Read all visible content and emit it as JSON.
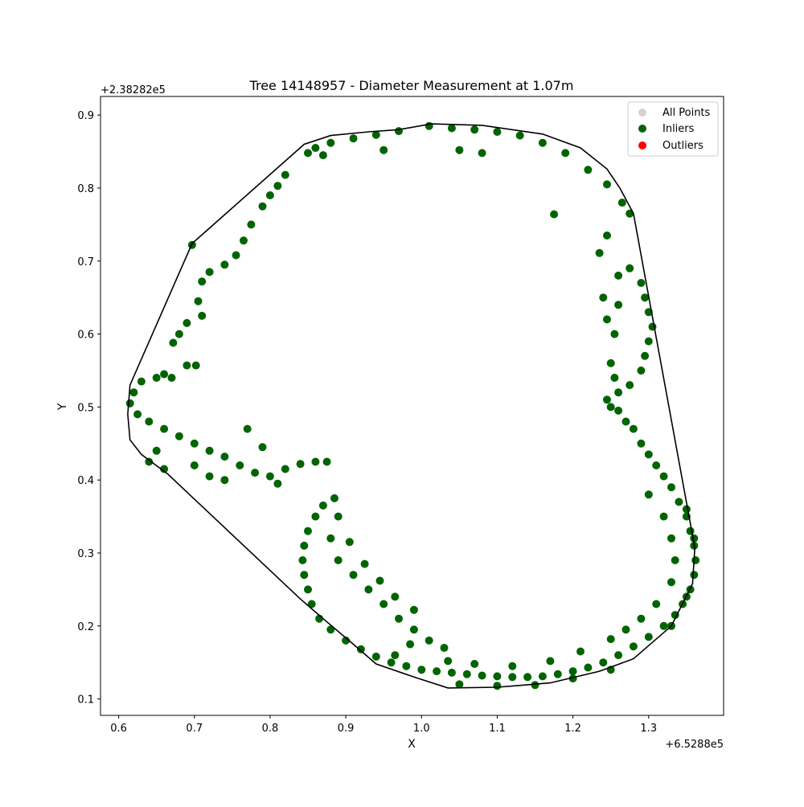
{
  "chart_data": {
    "type": "scatter",
    "title": "Tree 14148957 - Diameter Measurement at 1.07m",
    "xlabel": "X",
    "ylabel": "Y",
    "x_offset_label": "+6.5288e5",
    "y_offset_label": "+2.38282e5",
    "xlim": [
      0.576,
      1.399
    ],
    "ylim": [
      0.0775,
      0.9255
    ],
    "xticks": [
      0.6,
      0.7,
      0.8,
      0.9,
      1.0,
      1.1,
      1.2,
      1.3
    ],
    "xtick_labels": [
      "0.6",
      "0.7",
      "0.8",
      "0.9",
      "1.0",
      "1.1",
      "1.2",
      "1.3"
    ],
    "yticks": [
      0.1,
      0.2,
      0.3,
      0.4,
      0.5,
      0.6,
      0.7,
      0.8,
      0.9
    ],
    "ytick_labels": [
      "0.1",
      "0.2",
      "0.3",
      "0.4",
      "0.5",
      "0.6",
      "0.7",
      "0.8",
      "0.9"
    ],
    "grid": false,
    "legend_position": "top-right",
    "legend": [
      {
        "label": "All Points",
        "color": "#d3d3d3"
      },
      {
        "label": "Inliers",
        "color": "#006400"
      },
      {
        "label": "Outliers",
        "color": "#ff0000"
      }
    ],
    "series": [
      {
        "name": "Inliers",
        "color": "#006400",
        "points": [
          [
            1.01,
            0.885
          ],
          [
            1.04,
            0.882
          ],
          [
            1.07,
            0.88
          ],
          [
            1.1,
            0.877
          ],
          [
            1.13,
            0.872
          ],
          [
            1.16,
            0.862
          ],
          [
            1.19,
            0.848
          ],
          [
            1.22,
            0.825
          ],
          [
            1.245,
            0.805
          ],
          [
            1.265,
            0.78
          ],
          [
            1.275,
            0.765
          ],
          [
            0.97,
            0.878
          ],
          [
            0.94,
            0.873
          ],
          [
            0.91,
            0.868
          ],
          [
            0.88,
            0.862
          ],
          [
            0.86,
            0.855
          ],
          [
            0.85,
            0.848
          ],
          [
            0.87,
            0.845
          ],
          [
            0.95,
            0.852
          ],
          [
            1.05,
            0.852
          ],
          [
            1.08,
            0.848
          ],
          [
            1.175,
            0.764
          ],
          [
            1.245,
            0.735
          ],
          [
            1.235,
            0.711
          ],
          [
            0.82,
            0.818
          ],
          [
            0.81,
            0.803
          ],
          [
            0.8,
            0.79
          ],
          [
            0.79,
            0.775
          ],
          [
            0.775,
            0.75
          ],
          [
            0.765,
            0.728
          ],
          [
            0.755,
            0.708
          ],
          [
            0.74,
            0.695
          ],
          [
            0.72,
            0.685
          ],
          [
            0.71,
            0.672
          ],
          [
            0.697,
            0.722
          ],
          [
            0.705,
            0.645
          ],
          [
            0.71,
            0.625
          ],
          [
            0.69,
            0.615
          ],
          [
            0.68,
            0.6
          ],
          [
            0.672,
            0.588
          ],
          [
            0.69,
            0.557
          ],
          [
            0.702,
            0.557
          ],
          [
            0.63,
            0.535
          ],
          [
            0.65,
            0.54
          ],
          [
            0.66,
            0.545
          ],
          [
            0.67,
            0.54
          ],
          [
            0.62,
            0.52
          ],
          [
            0.615,
            0.505
          ],
          [
            0.625,
            0.49
          ],
          [
            0.64,
            0.48
          ],
          [
            0.66,
            0.47
          ],
          [
            0.68,
            0.46
          ],
          [
            0.7,
            0.45
          ],
          [
            0.72,
            0.44
          ],
          [
            0.74,
            0.432
          ],
          [
            0.76,
            0.42
          ],
          [
            0.78,
            0.41
          ],
          [
            0.8,
            0.405
          ],
          [
            0.82,
            0.415
          ],
          [
            0.84,
            0.422
          ],
          [
            0.86,
            0.425
          ],
          [
            0.875,
            0.425
          ],
          [
            0.79,
            0.445
          ],
          [
            0.77,
            0.47
          ],
          [
            0.65,
            0.44
          ],
          [
            0.64,
            0.425
          ],
          [
            0.66,
            0.415
          ],
          [
            0.7,
            0.42
          ],
          [
            0.72,
            0.405
          ],
          [
            0.74,
            0.4
          ],
          [
            0.81,
            0.395
          ],
          [
            1.26,
            0.68
          ],
          [
            1.275,
            0.69
          ],
          [
            1.29,
            0.67
          ],
          [
            1.295,
            0.65
          ],
          [
            1.3,
            0.63
          ],
          [
            1.305,
            0.61
          ],
          [
            1.3,
            0.59
          ],
          [
            1.295,
            0.57
          ],
          [
            1.29,
            0.55
          ],
          [
            1.275,
            0.53
          ],
          [
            1.26,
            0.52
          ],
          [
            1.255,
            0.54
          ],
          [
            1.25,
            0.56
          ],
          [
            1.255,
            0.6
          ],
          [
            1.26,
            0.64
          ],
          [
            1.24,
            0.65
          ],
          [
            1.245,
            0.62
          ],
          [
            1.25,
            0.5
          ],
          [
            1.245,
            0.51
          ],
          [
            1.26,
            0.495
          ],
          [
            1.27,
            0.48
          ],
          [
            1.28,
            0.47
          ],
          [
            1.29,
            0.45
          ],
          [
            1.3,
            0.435
          ],
          [
            1.31,
            0.42
          ],
          [
            1.32,
            0.405
          ],
          [
            1.33,
            0.39
          ],
          [
            1.34,
            0.37
          ],
          [
            1.35,
            0.35
          ],
          [
            1.355,
            0.33
          ],
          [
            1.36,
            0.31
          ],
          [
            1.362,
            0.29
          ],
          [
            1.36,
            0.27
          ],
          [
            1.355,
            0.25
          ],
          [
            1.345,
            0.23
          ],
          [
            1.335,
            0.215
          ],
          [
            1.32,
            0.2
          ],
          [
            1.3,
            0.185
          ],
          [
            1.28,
            0.172
          ],
          [
            1.26,
            0.16
          ],
          [
            1.24,
            0.15
          ],
          [
            1.22,
            0.143
          ],
          [
            1.2,
            0.138
          ],
          [
            1.18,
            0.134
          ],
          [
            1.16,
            0.131
          ],
          [
            1.14,
            0.13
          ],
          [
            1.12,
            0.13
          ],
          [
            1.1,
            0.131
          ],
          [
            1.08,
            0.132
          ],
          [
            1.06,
            0.134
          ],
          [
            1.04,
            0.136
          ],
          [
            1.02,
            0.138
          ],
          [
            1.0,
            0.14
          ],
          [
            0.98,
            0.145
          ],
          [
            0.96,
            0.15
          ],
          [
            0.94,
            0.158
          ],
          [
            0.92,
            0.168
          ],
          [
            0.9,
            0.18
          ],
          [
            0.88,
            0.195
          ],
          [
            0.865,
            0.21
          ],
          [
            0.855,
            0.23
          ],
          [
            0.85,
            0.25
          ],
          [
            0.845,
            0.27
          ],
          [
            0.843,
            0.29
          ],
          [
            0.845,
            0.31
          ],
          [
            0.85,
            0.33
          ],
          [
            0.86,
            0.35
          ],
          [
            0.87,
            0.365
          ],
          [
            0.885,
            0.375
          ],
          [
            0.89,
            0.35
          ],
          [
            0.88,
            0.32
          ],
          [
            0.89,
            0.29
          ],
          [
            0.91,
            0.27
          ],
          [
            0.93,
            0.25
          ],
          [
            0.95,
            0.23
          ],
          [
            0.97,
            0.21
          ],
          [
            0.99,
            0.195
          ],
          [
            1.01,
            0.18
          ],
          [
            1.03,
            0.17
          ],
          [
            1.3,
            0.38
          ],
          [
            1.32,
            0.35
          ],
          [
            1.33,
            0.32
          ],
          [
            1.335,
            0.29
          ],
          [
            1.33,
            0.26
          ],
          [
            1.31,
            0.23
          ],
          [
            1.29,
            0.21
          ],
          [
            1.27,
            0.195
          ],
          [
            1.25,
            0.182
          ],
          [
            1.21,
            0.165
          ],
          [
            1.17,
            0.152
          ],
          [
            1.12,
            0.145
          ],
          [
            1.07,
            0.148
          ],
          [
            1.035,
            0.152
          ],
          [
            0.905,
            0.315
          ],
          [
            0.925,
            0.285
          ],
          [
            0.945,
            0.262
          ],
          [
            0.965,
            0.24
          ],
          [
            0.99,
            0.222
          ],
          [
            0.985,
            0.175
          ],
          [
            0.965,
            0.16
          ],
          [
            1.2,
            0.128
          ],
          [
            1.05,
            0.12
          ],
          [
            1.1,
            0.118
          ],
          [
            1.15,
            0.119
          ],
          [
            1.25,
            0.14
          ],
          [
            1.33,
            0.2
          ],
          [
            1.35,
            0.24
          ],
          [
            1.36,
            0.32
          ],
          [
            1.35,
            0.36
          ]
        ]
      },
      {
        "name": "Outliers",
        "color": "#ff0000",
        "points": []
      }
    ],
    "hull": [
      [
        1.013,
        0.888
      ],
      [
        1.08,
        0.886
      ],
      [
        1.16,
        0.874
      ],
      [
        1.21,
        0.855
      ],
      [
        1.245,
        0.826
      ],
      [
        1.262,
        0.8
      ],
      [
        1.28,
        0.765
      ],
      [
        1.361,
        0.307
      ],
      [
        1.358,
        0.258
      ],
      [
        1.33,
        0.2
      ],
      [
        1.28,
        0.155
      ],
      [
        1.235,
        0.138
      ],
      [
        1.17,
        0.122
      ],
      [
        1.1,
        0.116
      ],
      [
        1.035,
        0.115
      ],
      [
        0.99,
        0.13
      ],
      [
        0.94,
        0.148
      ],
      [
        0.91,
        0.175
      ],
      [
        0.87,
        0.21
      ],
      [
        0.84,
        0.237
      ],
      [
        0.665,
        0.408
      ],
      [
        0.63,
        0.435
      ],
      [
        0.615,
        0.455
      ],
      [
        0.612,
        0.49
      ],
      [
        0.615,
        0.53
      ],
      [
        0.697,
        0.724
      ],
      [
        0.845,
        0.86
      ],
      [
        0.88,
        0.872
      ],
      [
        0.93,
        0.877
      ],
      [
        0.97,
        0.88
      ]
    ]
  }
}
